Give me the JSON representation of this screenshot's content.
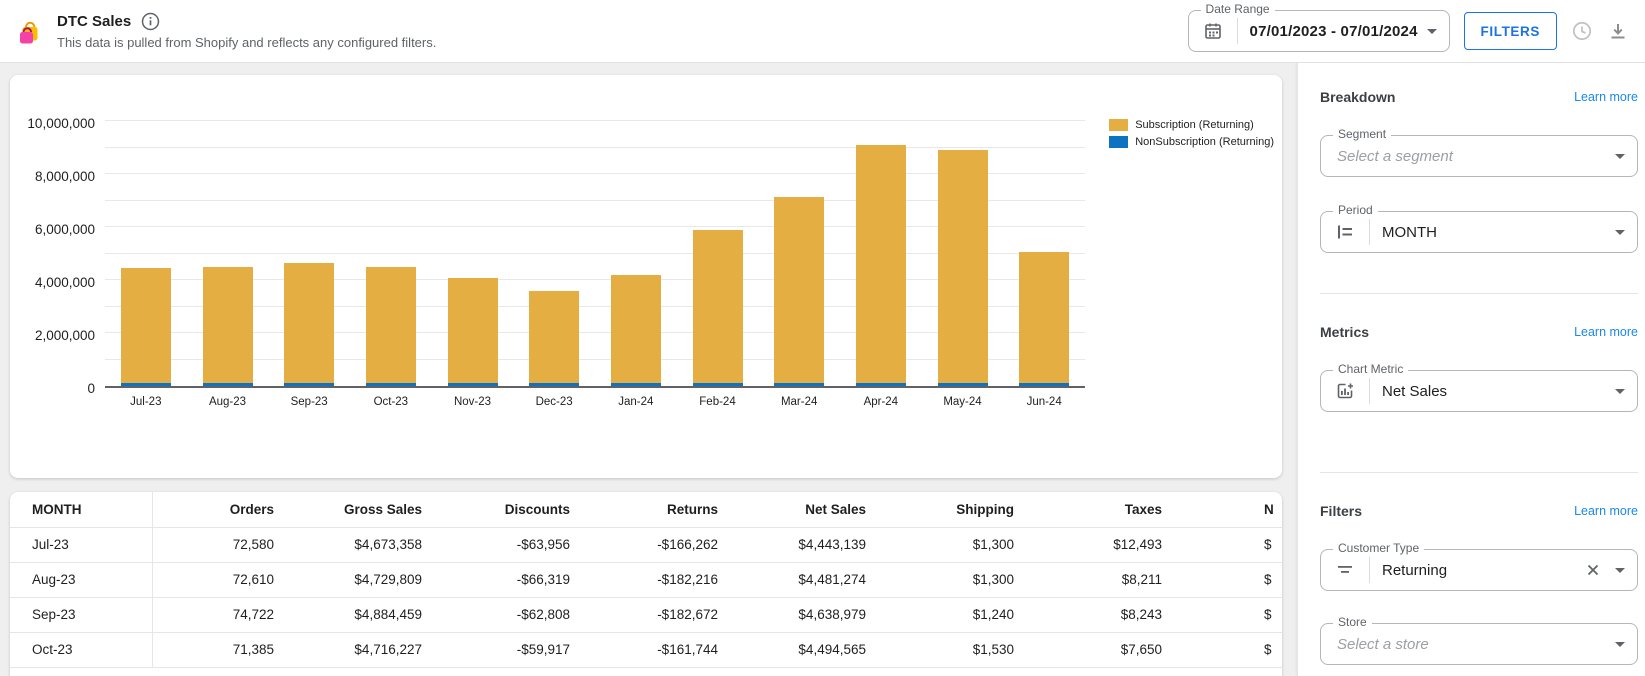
{
  "header": {
    "app_icon": "shopping-bags",
    "title": "DTC Sales",
    "subtitle": "This data is pulled from Shopify and reflects any configured filters."
  },
  "toolbar": {
    "date_range_label": "Date Range",
    "date_range_value": "07/01/2023 - 07/01/2024",
    "filters_label": "FILTERS",
    "icon_names": [
      "calendar-icon",
      "history-clock-icon",
      "download-icon"
    ]
  },
  "chart_data": {
    "type": "bar",
    "stacked": true,
    "title": "",
    "xlabel": "",
    "ylabel": "",
    "grid": true,
    "legend_position": "top-right",
    "ylim": [
      0,
      10000000
    ],
    "gridline_step": 1000000,
    "yticks": [
      {
        "value": 0,
        "label": "0"
      },
      {
        "value": 2000000,
        "label": "2,000,000"
      },
      {
        "value": 4000000,
        "label": "4,000,000"
      },
      {
        "value": 6000000,
        "label": "6,000,000"
      },
      {
        "value": 8000000,
        "label": "8,000,000"
      },
      {
        "value": 10000000,
        "label": "10,000,000"
      }
    ],
    "categories": [
      "Jul-23",
      "Aug-23",
      "Sep-23",
      "Oct-23",
      "Nov-23",
      "Dec-23",
      "Jan-24",
      "Feb-24",
      "Mar-24",
      "Apr-24",
      "May-24",
      "Jun-24"
    ],
    "series": [
      {
        "name": "Subscription (Returning)",
        "color": "#E5AE43",
        "values": [
          4343139,
          4381274,
          4538979,
          4394565,
          3990000,
          3500000,
          4100000,
          5770000,
          7020000,
          8980000,
          8800000,
          4950000
        ]
      },
      {
        "name": "NonSubscription (Returning)",
        "color": "#0E72C2",
        "values": [
          100000,
          100000,
          100000,
          100000,
          100000,
          100000,
          100000,
          100000,
          100000,
          100000,
          100000,
          100000
        ]
      }
    ]
  },
  "table": {
    "columns": [
      "MONTH",
      "Orders",
      "Gross Sales",
      "Discounts",
      "Returns",
      "Net Sales",
      "Shipping",
      "Taxes"
    ],
    "clipped_column": {
      "header": "N",
      "cell": "$"
    },
    "rows": [
      [
        "Jul-23",
        "72,580",
        "$4,673,358",
        "-$63,956",
        "-$166,262",
        "$4,443,139",
        "$1,300",
        "$12,493"
      ],
      [
        "Aug-23",
        "72,610",
        "$4,729,809",
        "-$66,319",
        "-$182,216",
        "$4,481,274",
        "$1,300",
        "$8,211"
      ],
      [
        "Sep-23",
        "74,722",
        "$4,884,459",
        "-$62,808",
        "-$182,672",
        "$4,638,979",
        "$1,240",
        "$8,243"
      ],
      [
        "Oct-23",
        "71,385",
        "$4,716,227",
        "-$59,917",
        "-$161,744",
        "$4,494,565",
        "$1,530",
        "$7,650"
      ]
    ]
  },
  "sidebar": {
    "breakdown": {
      "heading": "Breakdown",
      "link": "Learn more",
      "segment": {
        "label": "Segment",
        "placeholder": "Select a segment"
      },
      "period": {
        "label": "Period",
        "value": "MONTH",
        "icon": "axis-period-icon"
      }
    },
    "metrics": {
      "heading": "Metrics",
      "link": "Learn more",
      "chart_metric": {
        "label": "Chart Metric",
        "value": "Net Sales",
        "icon": "add-chart-icon"
      }
    },
    "filters": {
      "heading": "Filters",
      "link": "Learn more",
      "customer_type": {
        "label": "Customer Type",
        "value": "Returning",
        "icon": "filter-icon",
        "clearable": true
      },
      "store": {
        "label": "Store",
        "placeholder": "Select a store"
      }
    }
  },
  "colors": {
    "accent_link": "#1a88e8",
    "button_blue": "#1a73e8",
    "bar_yellow": "#E5AE43",
    "bar_blue": "#0E72C2",
    "axis_line": "#5f6368",
    "gridline": "#e8e8e8"
  }
}
